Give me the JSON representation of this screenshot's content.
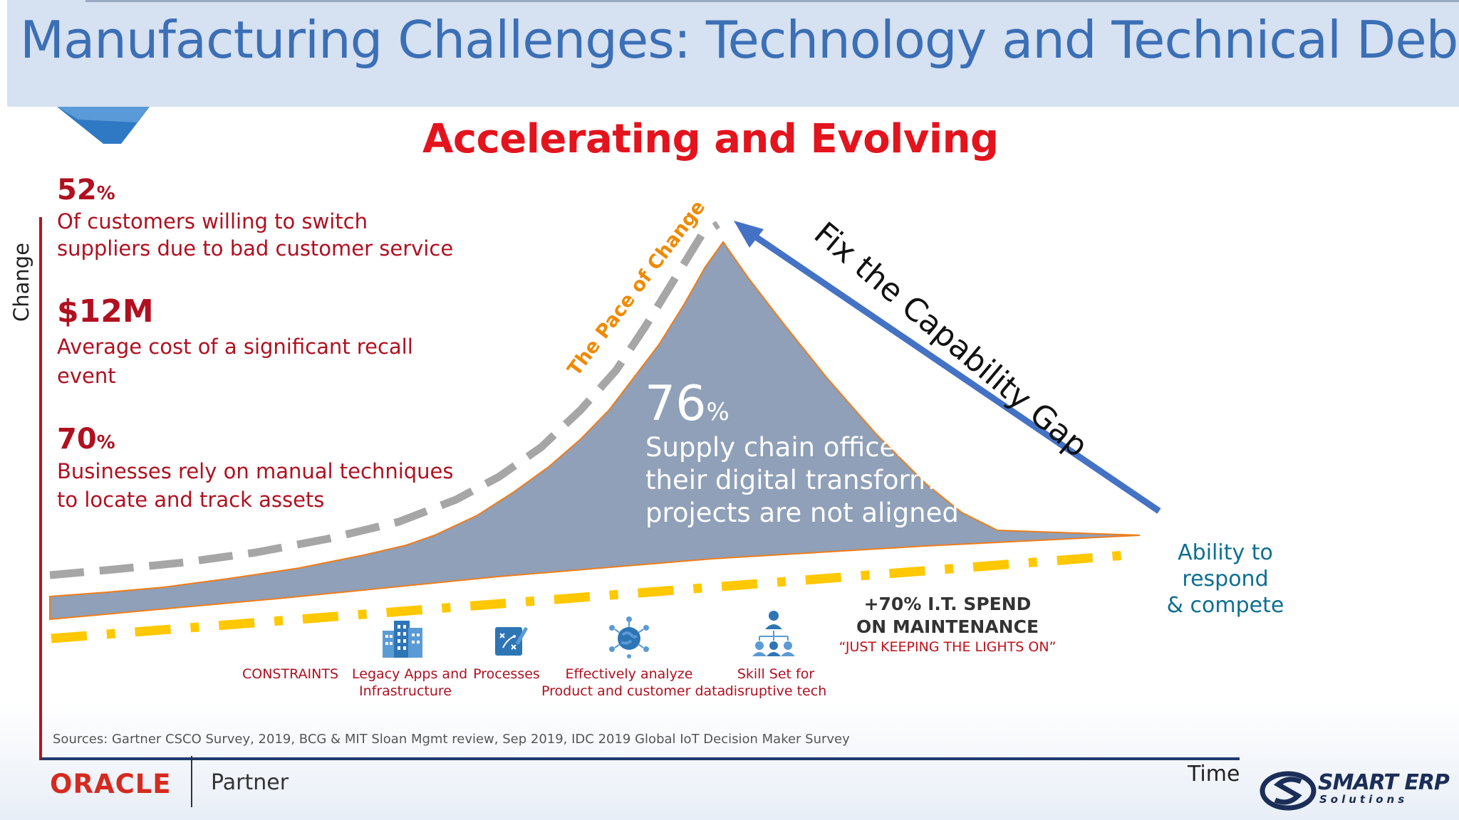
{
  "header": {
    "title": "Manufacturing Challenges: Technology and Technical Debt"
  },
  "headline": "Accelerating and Evolving",
  "stats": [
    {
      "value": "52",
      "suffix": "%",
      "text_line1": "Of customers willing to switch",
      "text_line2": "suppliers due to bad customer service"
    },
    {
      "value": "$12M",
      "suffix": "",
      "text_line1": "Average cost of a significant recall",
      "text_line2": "event"
    },
    {
      "value": "70",
      "suffix": "%",
      "text_line1": "Businesses rely on manual techniques",
      "text_line2": "to locate and track assets"
    }
  ],
  "axes": {
    "y_label": "Change",
    "x_label": "Time"
  },
  "curve_labels": {
    "pace": "The Pace of Change",
    "gap": "Fix the Capability Gap",
    "ability_line1": "Ability to respond",
    "ability_line2": "& compete"
  },
  "center_stat": {
    "value": "76",
    "suffix": "%",
    "line1": "Supply chain officers say",
    "line2": "their digital transformation",
    "line3": "projects are not aligned"
  },
  "constraints": {
    "title": "CONSTRAINTS",
    "items": [
      {
        "icon": "building-icon",
        "line1": "Legacy Apps and",
        "line2": "Infrastructure"
      },
      {
        "icon": "strategy-board-icon",
        "line1": "Processes",
        "line2": ""
      },
      {
        "icon": "globe-network-icon",
        "line1": "Effectively analyze",
        "line2": "Product  and customer data"
      },
      {
        "icon": "team-hierarchy-icon",
        "line1": "Skill Set for",
        "line2": "disruptive tech"
      }
    ]
  },
  "spend": {
    "line1": "+70% I.T. SPEND",
    "line2": "ON MAINTENANCE",
    "line3": "“JUST KEEPING THE LIGHTS ON”"
  },
  "sources": "Sources: Gartner CSCO Survey, 2019, BCG & MIT Sloan Mgmt review, Sep 2019, IDC 2019 Global IoT Decision Maker Survey",
  "footer": {
    "oracle": "ORACLE",
    "partner": "Partner",
    "brand_line1": "SMART ERP",
    "brand_line2": "Solutions"
  },
  "colors": {
    "title_blue": "#3b6fb6",
    "headline_red": "#e3141d",
    "stat_red": "#b01020",
    "area_fill": "#8fa0b8",
    "area_edge": "#f07d1a",
    "pace_label": "#f08a00",
    "gap_arrow": "#4472c4",
    "ability_teal": "#0d6f91",
    "dash_yellow": "#ffc800",
    "dash_gray": "#a6a6a6"
  }
}
